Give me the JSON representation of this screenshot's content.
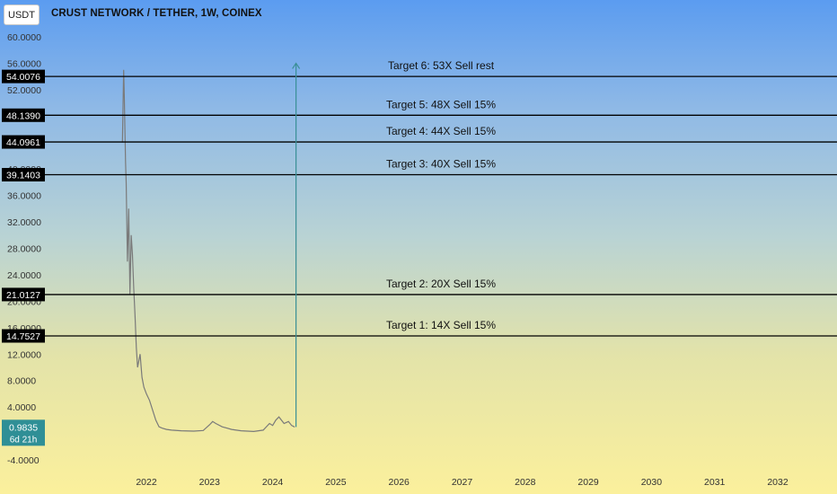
{
  "header": {
    "quote_currency": "USDT",
    "title": "CRUST NETWORK / TETHER, 1W, COINEX"
  },
  "colors": {
    "line": "#000000",
    "price_line": "#7a7a7a",
    "price_label_bg": "#2f8f96",
    "label_bg": "#000000",
    "label_text": "#ffffff",
    "arrow": "#3a8f96"
  },
  "chart_data": {
    "type": "line",
    "title": "CRUST NETWORK / TETHER, 1W, COINEX",
    "xlabel": "",
    "ylabel": "",
    "ylim": [
      -6,
      62
    ],
    "xlim": [
      2021.2,
      2033.0
    ],
    "grid": false,
    "y_ticks": [
      "60.0000",
      "56.0000",
      "52.0000",
      "44.0000",
      "40.0000",
      "36.0000",
      "32.0000",
      "28.0000",
      "24.0000",
      "20.0000",
      "16.0000",
      "12.0000",
      "8.0000",
      "4.0000",
      "-4.0000"
    ],
    "y_tick_values": [
      60,
      56,
      52,
      44,
      40,
      36,
      32,
      28,
      24,
      20,
      16,
      12,
      8,
      4,
      -4
    ],
    "x_ticks": [
      "2022",
      "2023",
      "2024",
      "2025",
      "2026",
      "2027",
      "2028",
      "2029",
      "2030",
      "2031",
      "2032"
    ],
    "x_tick_values": [
      2022,
      2023,
      2024,
      2025,
      2026,
      2027,
      2028,
      2029,
      2030,
      2031,
      2032
    ],
    "series": [
      {
        "x": [
          2021.62,
          2021.64,
          2021.65,
          2021.66,
          2021.67,
          2021.68,
          2021.7,
          2021.72,
          2021.74,
          2021.76,
          2021.78,
          2021.8,
          2021.82,
          2021.84,
          2021.86,
          2021.88,
          2021.9,
          2021.93,
          2021.96,
          2022.0,
          2022.05,
          2022.1,
          2022.15,
          2022.2,
          2022.25,
          2022.32,
          2022.4,
          2022.55,
          2022.75,
          2022.9,
          2023.0,
          2023.05,
          2023.1,
          2023.2,
          2023.35,
          2023.5,
          2023.7,
          2023.85,
          2023.95,
          2024.0,
          2024.05,
          2024.1,
          2024.18,
          2024.25,
          2024.3,
          2024.35
        ],
        "values": [
          44,
          55,
          51,
          46,
          41,
          38,
          26,
          34,
          21,
          30,
          27,
          22,
          18,
          13,
          10,
          11,
          12,
          8.5,
          7,
          6,
          5,
          3.5,
          2,
          1,
          0.8,
          0.6,
          0.5,
          0.4,
          0.35,
          0.45,
          1.3,
          1.8,
          1.5,
          1.0,
          0.6,
          0.4,
          0.3,
          0.5,
          1.5,
          1.2,
          2.0,
          2.5,
          1.5,
          1.8,
          1.2,
          0.98
        ]
      }
    ],
    "targets": [
      {
        "label": "Target 6: 53X Sell rest",
        "price": 54.0076,
        "price_label": "54.0076"
      },
      {
        "label": "Target 5: 48X Sell 15%",
        "price": 48.139,
        "price_label": "48.1390"
      },
      {
        "label": "Target 4: 44X Sell 15%",
        "price": 44.0961,
        "price_label": "44.0961"
      },
      {
        "label": "Target 3: 40X Sell 15%",
        "price": 39.1403,
        "price_label": "39.1403"
      },
      {
        "label": "Target 2: 20X Sell 15%",
        "price": 21.0127,
        "price_label": "21.0127"
      },
      {
        "label": "Target 1: 14X Sell 15%",
        "price": 14.7527,
        "price_label": "14.7527"
      }
    ],
    "current_price": {
      "value": 0.9835,
      "label": "0.9835",
      "countdown": "6d 21h"
    },
    "arrow": {
      "x": 2024.37,
      "y_from": 0.98,
      "y_to": 56
    }
  }
}
